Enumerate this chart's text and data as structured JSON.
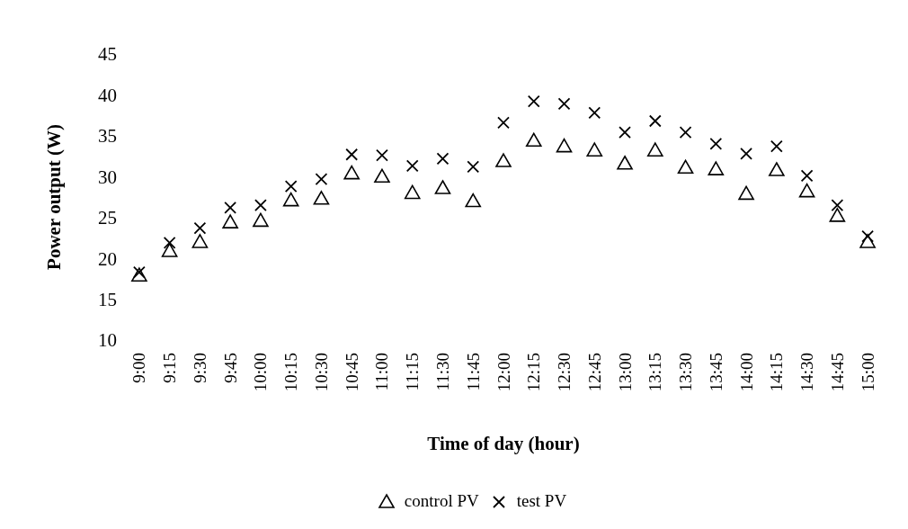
{
  "chart_data": {
    "type": "scatter",
    "xlabel": "Time of day (hour)",
    "ylabel": "Power output (W)",
    "categories": [
      "9:00",
      "9:15",
      "9:30",
      "9:45",
      "10:00",
      "10:15",
      "10:30",
      "10:45",
      "11:00",
      "11:15",
      "11:30",
      "11:45",
      "12:00",
      "12:15",
      "12:30",
      "12:45",
      "13:00",
      "13:15",
      "13:30",
      "13:45",
      "14:00",
      "14:15",
      "14:30",
      "14:45",
      "15:00"
    ],
    "series": [
      {
        "name": "control PV",
        "color": "#000000",
        "marker": "triangle",
        "values": [
          17.9,
          20.9,
          22.0,
          24.4,
          24.6,
          27.1,
          27.3,
          30.4,
          30.0,
          28.0,
          28.6,
          27.0,
          31.9,
          34.4,
          33.7,
          33.2,
          31.6,
          33.2,
          31.1,
          30.9,
          27.9,
          30.8,
          28.2,
          25.2,
          22.0
        ]
      },
      {
        "name": "test PV",
        "color": "#000000",
        "marker": "cross",
        "values": [
          18.3,
          21.9,
          23.7,
          26.2,
          26.5,
          28.8,
          29.7,
          32.7,
          32.6,
          31.3,
          32.2,
          31.2,
          36.6,
          39.2,
          38.9,
          37.8,
          35.4,
          36.8,
          35.4,
          34.0,
          32.8,
          33.7,
          30.1,
          26.5,
          22.7
        ]
      }
    ],
    "ylim": [
      10,
      45
    ],
    "yticks": [
      10,
      15,
      20,
      25,
      30,
      35,
      40,
      45
    ],
    "grid": false,
    "legend": "bottom"
  }
}
